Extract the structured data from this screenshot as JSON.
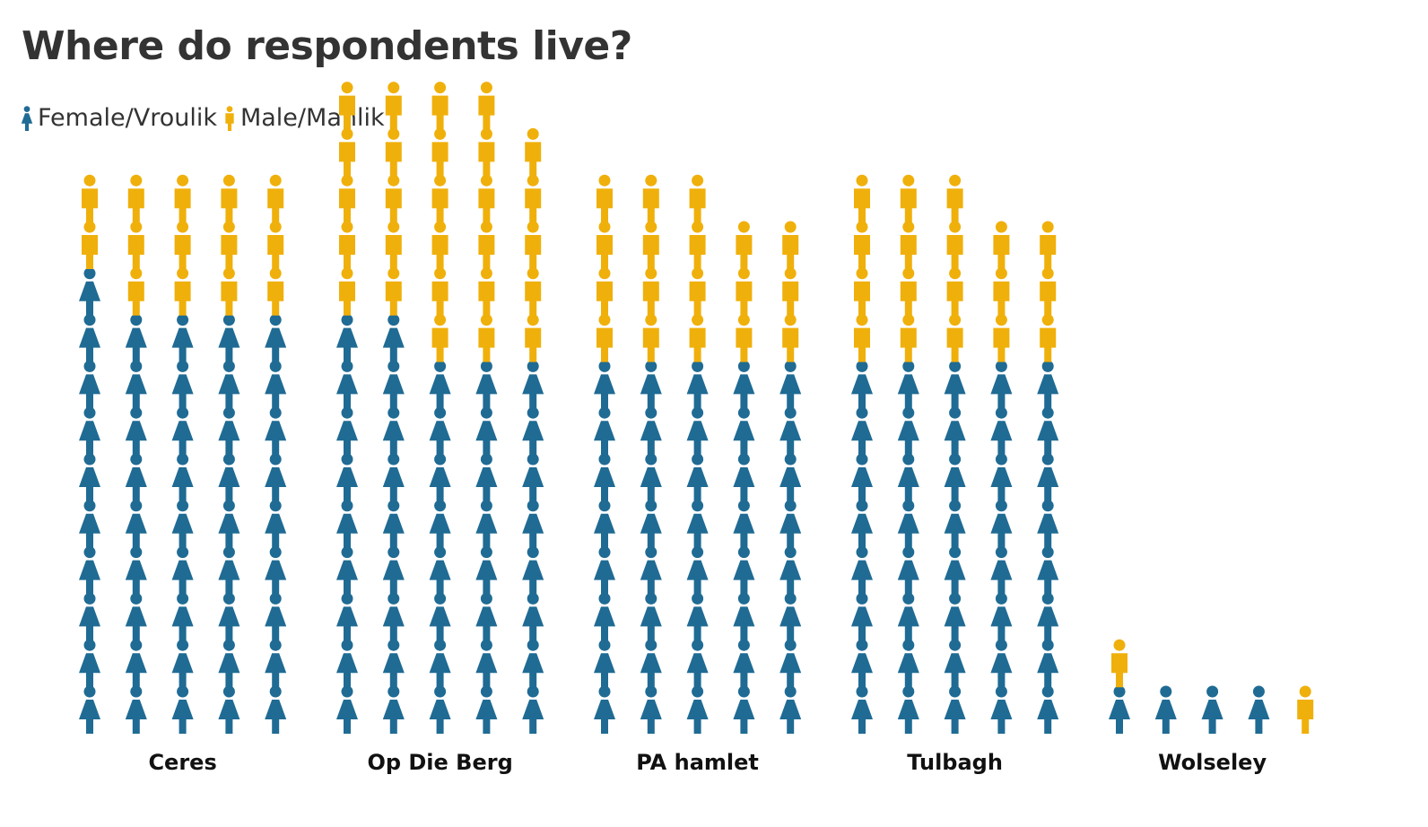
{
  "chart_data": {
    "type": "isotype",
    "title": "Where do respondents live?",
    "legend": [
      {
        "name": "Female/Vroulik",
        "color": "#1f6b94",
        "icon": "female-person-icon"
      },
      {
        "name": "Male/Manlik",
        "color": "#f0b00b",
        "icon": "male-person-icon"
      }
    ],
    "legend_placement": "top-left",
    "units_per_row": 5,
    "categories": [
      "Ceres",
      "Op Die Berg",
      "PA hamlet",
      "Tulbagh",
      "Wolseley"
    ],
    "series": [
      {
        "name": "Female/Vroulik",
        "values": [
          46,
          42,
          40,
          40,
          4
        ]
      },
      {
        "name": "Male/Manlik",
        "values": [
          14,
          27,
          18,
          18,
          2
        ]
      }
    ],
    "grid": false
  }
}
